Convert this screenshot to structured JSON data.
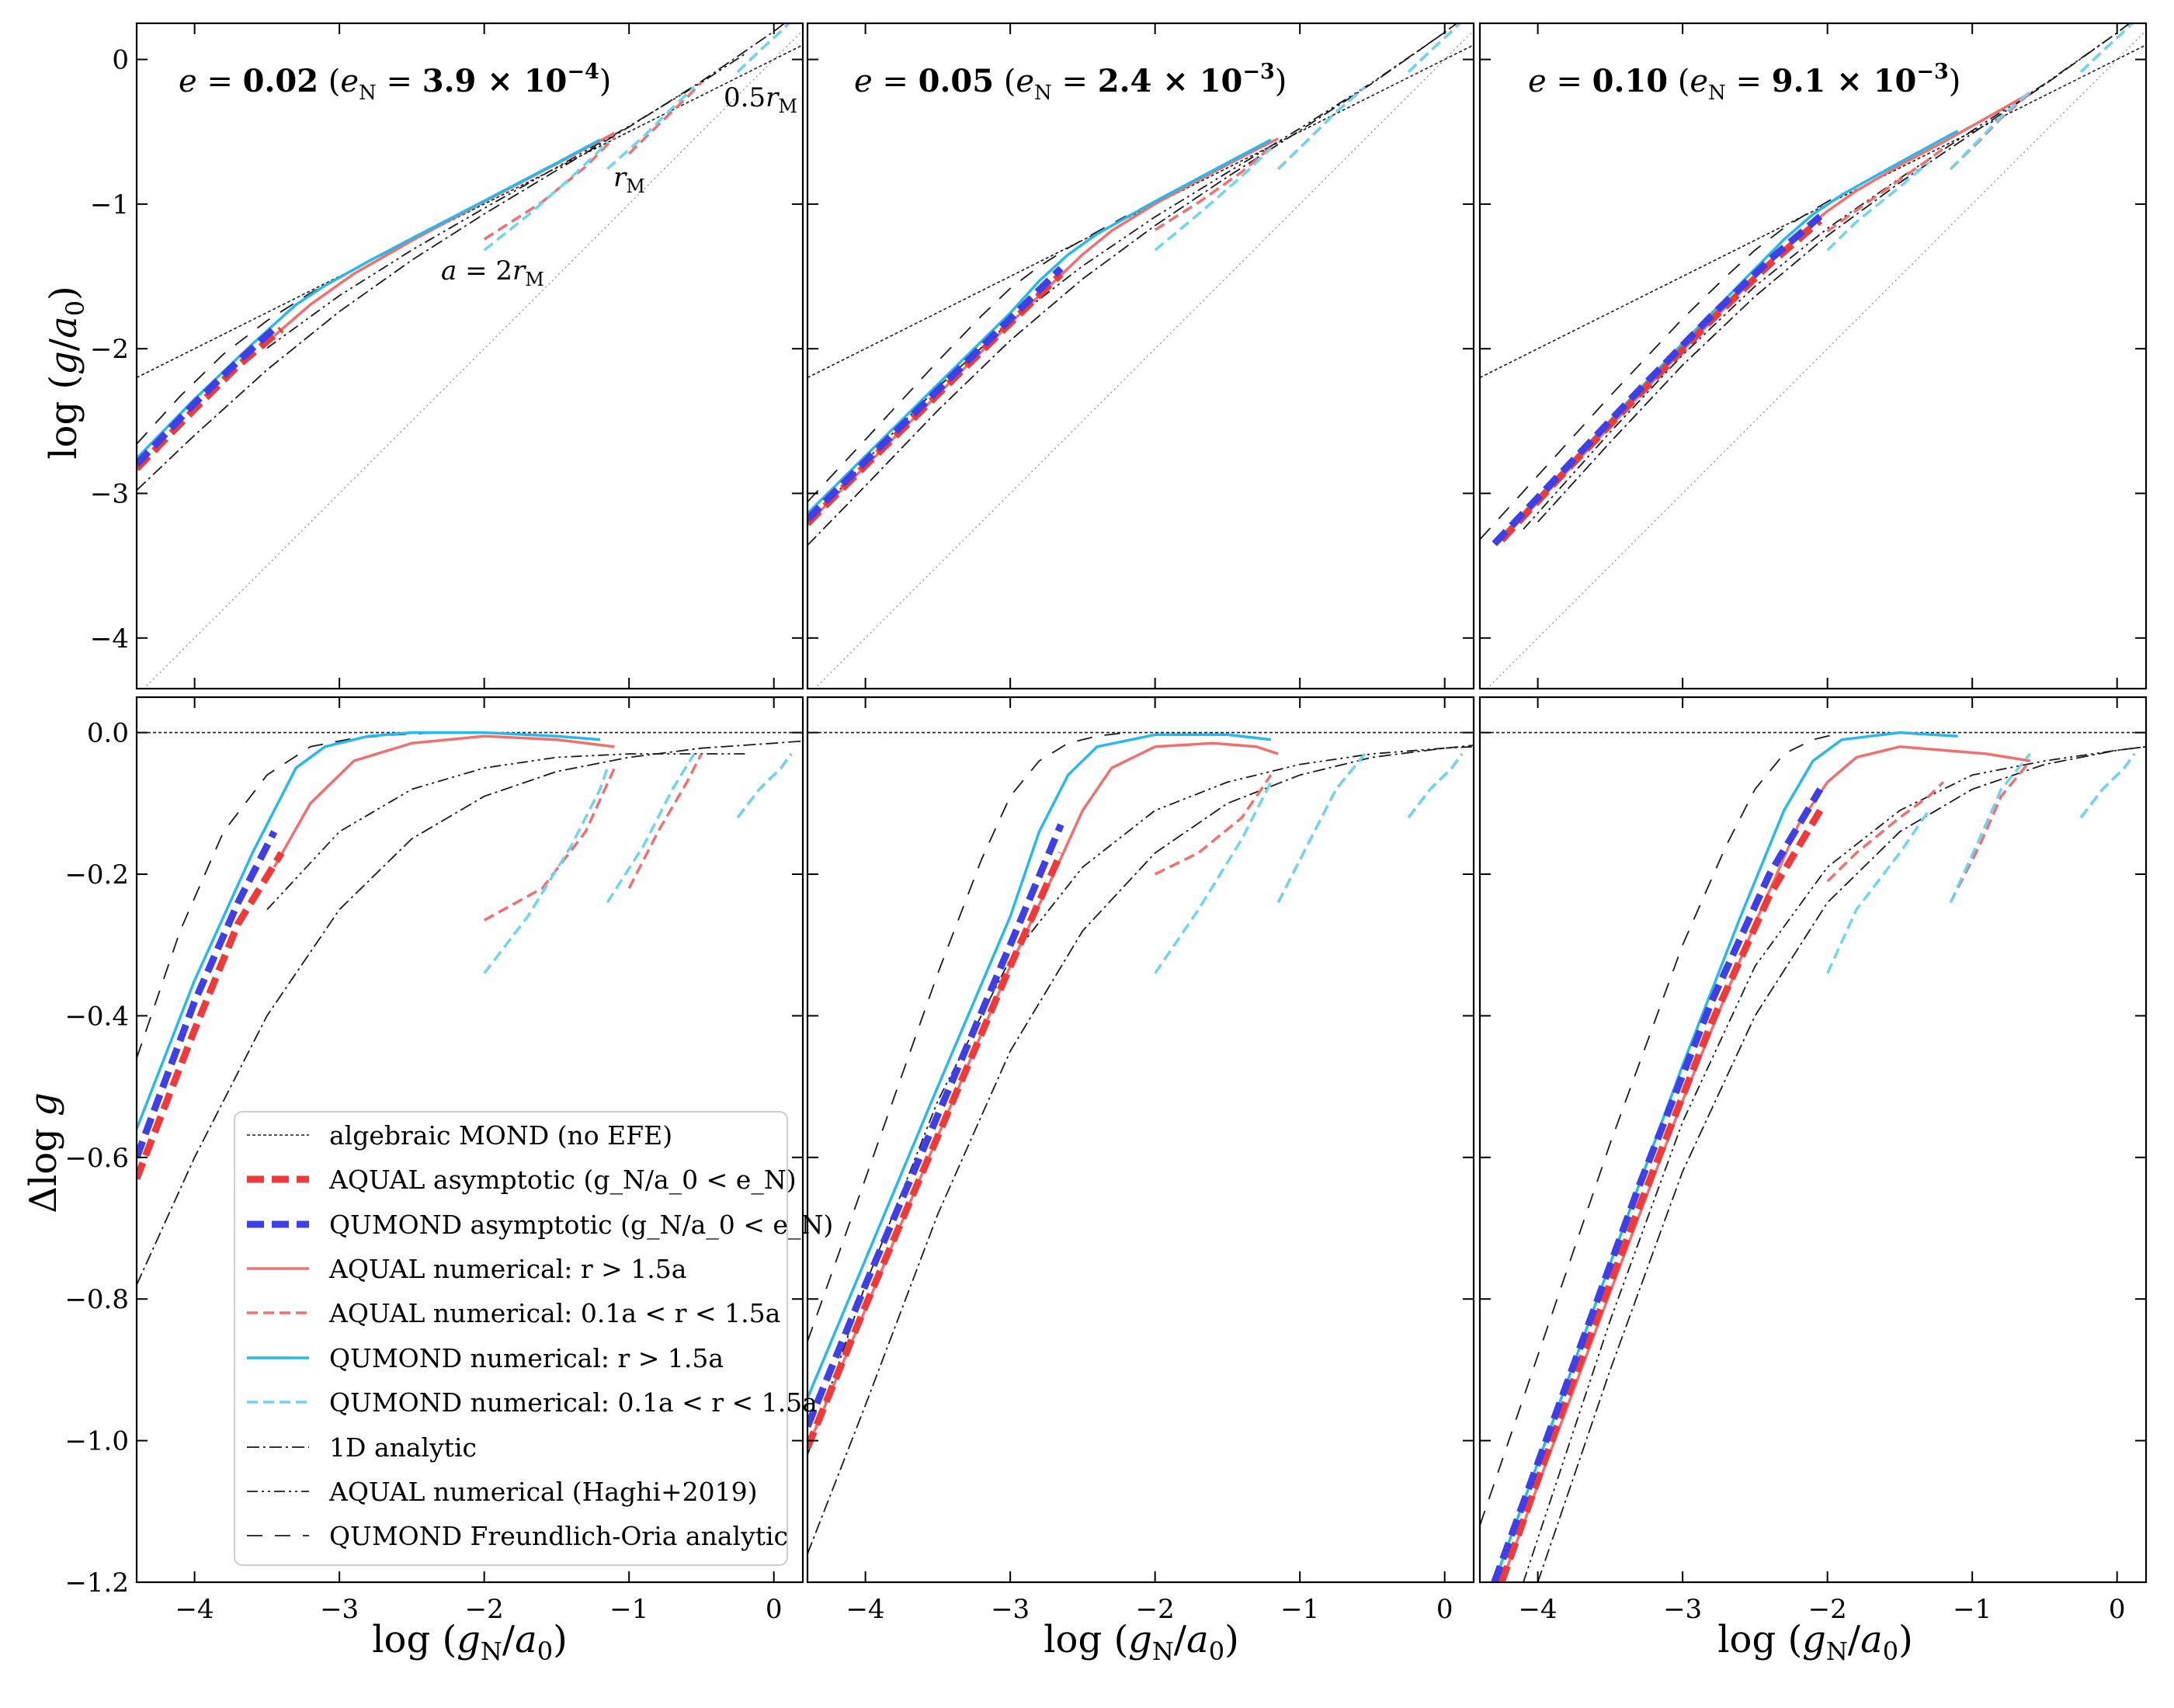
{
  "chart_data": {
    "type": "line",
    "layout": "2x3 panel grid",
    "x_label": "log (g_N/a_0)",
    "top_y_label": "log (g/a_0)",
    "bottom_y_label": "Δlog g",
    "xlim": [
      -4.4,
      0.2
    ],
    "top_ylim": [
      -4.35,
      0.25
    ],
    "bottom_ylim": [
      -1.2,
      0.05
    ],
    "x_ticks": [
      -4,
      -3,
      -2,
      -1,
      0
    ],
    "x_tick_labels": [
      "−4",
      "−3",
      "−2",
      "−1",
      "0"
    ],
    "top_y_ticks": [
      0,
      -1,
      -2,
      -3,
      -4
    ],
    "top_y_tick_labels": [
      "0",
      "−1",
      "−2",
      "−3",
      "−4"
    ],
    "bottom_y_ticks": [
      0,
      -0.2,
      -0.4,
      -0.6,
      -0.8,
      -1.0,
      -1.2
    ],
    "bottom_y_tick_labels": [
      "0.0",
      "−0.2",
      "−0.4",
      "−0.6",
      "−0.8",
      "−1.0",
      "−1.2"
    ],
    "annotations": [
      "0.5 r_M",
      "r_M",
      "a = 2 r_M"
    ],
    "legend": [
      {
        "label": "algebraic MOND (no EFE)",
        "style": "thin-dotted-black"
      },
      {
        "label": "AQUAL asymptotic (g_N/a_0 < e_N)",
        "style": "thick-dashed-red"
      },
      {
        "label": "QUMOND asymptotic (g_N/a_0 < e_N)",
        "style": "thick-dashed-blue"
      },
      {
        "label": "AQUAL numerical: r > 1.5a",
        "style": "solid-red"
      },
      {
        "label": "AQUAL numerical: 0.1a < r < 1.5a",
        "style": "dashed-red"
      },
      {
        "label": "QUMOND numerical: r > 1.5a",
        "style": "solid-cyan"
      },
      {
        "label": "QUMOND numerical: 0.1a < r < 1.5a",
        "style": "dashed-cyan"
      },
      {
        "label": "1D analytic",
        "style": "dashdot-black"
      },
      {
        "label": "AQUAL numerical (Haghi+2019)",
        "style": "dashdotdot-black"
      },
      {
        "label": "QUMOND Freundlich-Oria analytic",
        "style": "longdash-black"
      }
    ],
    "panels": [
      {
        "e": "0.02",
        "eN_mant": "3.9",
        "eN_exp": "−4",
        "curves": {
          "mond": {
            "x": [
              -4.4,
              -3.4,
              -2.4,
              -1.4,
              -0.5,
              0.2
            ],
            "y": [
              0.0,
              0.0,
              0.0,
              0.0,
              0.0,
              0.0
            ]
          },
          "aqAsym": {
            "x": [
              -4.4,
              -4.0,
              -3.7,
              -3.4
            ],
            "y": [
              -0.63,
              -0.42,
              -0.27,
              -0.17
            ]
          },
          "quAsym": {
            "x": [
              -4.4,
              -4.0,
              -3.7,
              -3.45
            ],
            "y": [
              -0.6,
              -0.38,
              -0.24,
              -0.14
            ]
          },
          "aqNum": {
            "x": [
              -3.45,
              -3.2,
              -2.9,
              -2.5,
              -2.0,
              -1.5,
              -1.1
            ],
            "y": [
              -0.19,
              -0.1,
              -0.04,
              -0.015,
              -0.005,
              -0.01,
              -0.02
            ]
          },
          "quNum": {
            "x": [
              -4.4,
              -4.0,
              -3.6,
              -3.3,
              -3.1,
              -2.8,
              -2.5,
              -2.0,
              -1.5,
              -1.2
            ],
            "y": [
              -0.56,
              -0.35,
              -0.17,
              -0.05,
              -0.02,
              -0.005,
              0.0,
              0.0,
              -0.005,
              -0.01
            ]
          },
          "aqDashes": [
            {
              "x": [
                -2.0,
                -1.6,
                -1.3,
                -1.1
              ],
              "y": [
                -0.265,
                -0.22,
                -0.14,
                -0.05
              ]
            },
            {
              "x": [
                -1.0,
                -0.8,
                -0.6,
                -0.5
              ],
              "y": [
                -0.22,
                -0.14,
                -0.07,
                -0.03
              ]
            },
            {
              "x": [
                -0.25,
                -0.1,
                0.05,
                0.12
              ],
              "y": [
                -0.12,
                -0.08,
                -0.05,
                -0.03
              ]
            }
          ],
          "quDashes": [
            {
              "x": [
                -2.0,
                -1.7,
                -1.4,
                -1.2,
                -1.15
              ],
              "y": [
                -0.34,
                -0.26,
                -0.16,
                -0.08,
                -0.05
              ]
            },
            {
              "x": [
                -1.15,
                -0.9,
                -0.7,
                -0.55
              ],
              "y": [
                -0.24,
                -0.16,
                -0.08,
                -0.03
              ]
            },
            {
              "x": [
                -0.25,
                -0.1,
                0.05,
                0.12
              ],
              "y": [
                -0.12,
                -0.08,
                -0.05,
                -0.03
              ]
            }
          ],
          "d1": {
            "x": [
              -4.4,
              -4.0,
              -3.5,
              -3.0,
              -2.5,
              -2.0,
              -1.5,
              -1.0,
              -0.5,
              0.0,
              0.2
            ],
            "y": [
              -0.78,
              -0.6,
              -0.4,
              -0.25,
              -0.15,
              -0.09,
              -0.055,
              -0.035,
              -0.022,
              -0.015,
              -0.012
            ]
          },
          "hg": {
            "x": [
              -3.5,
              -3.0,
              -2.5,
              -2.0,
              -1.5,
              -1.0,
              -0.5,
              -0.2
            ],
            "y": [
              -0.25,
              -0.14,
              -0.08,
              -0.05,
              -0.035,
              -0.03,
              -0.03,
              -0.03
            ]
          },
          "fo": {
            "x": [
              -4.4,
              -4.1,
              -3.8,
              -3.5,
              -3.2,
              -2.9,
              -2.6,
              -2.3
            ],
            "y": [
              -0.46,
              -0.28,
              -0.14,
              -0.06,
              -0.02,
              -0.008,
              -0.003,
              0.0
            ]
          }
        }
      },
      {
        "e": "0.05",
        "eN_mant": "2.4",
        "eN_exp": "−3",
        "curves": {
          "mond": {
            "x": [
              -4.4,
              -3.4,
              -2.4,
              -1.4,
              -0.5,
              0.2
            ],
            "y": [
              0.0,
              0.0,
              0.0,
              0.0,
              0.0,
              0.0
            ]
          },
          "aqAsym": {
            "x": [
              -4.4,
              -4.0,
              -3.5,
              -3.0,
              -2.65
            ],
            "y": [
              -1.01,
              -0.81,
              -0.57,
              -0.33,
              -0.17
            ]
          },
          "quAsym": {
            "x": [
              -4.4,
              -4.0,
              -3.5,
              -3.0,
              -2.65
            ],
            "y": [
              -0.98,
              -0.78,
              -0.54,
              -0.3,
              -0.13
            ]
          },
          "aqNum": {
            "x": [
              -4.4,
              -3.5,
              -3.0,
              -2.7,
              -2.5,
              -2.3,
              -2.0,
              -1.6,
              -1.3,
              -1.15
            ],
            "y": [
              -1.01,
              -0.57,
              -0.33,
              -0.2,
              -0.11,
              -0.05,
              -0.02,
              -0.015,
              -0.02,
              -0.03
            ]
          },
          "quNum": {
            "x": [
              -4.4,
              -3.5,
              -3.0,
              -2.8,
              -2.6,
              -2.4,
              -2.0,
              -1.5,
              -1.2
            ],
            "y": [
              -0.94,
              -0.5,
              -0.26,
              -0.14,
              -0.06,
              -0.02,
              -0.003,
              -0.003,
              -0.01
            ]
          },
          "aqDashes": [
            {
              "x": [
                -2.0,
                -1.7,
                -1.4,
                -1.2
              ],
              "y": [
                -0.2,
                -0.17,
                -0.12,
                -0.06
              ]
            },
            {
              "x": [
                -1.15,
                -0.95,
                -0.75,
                -0.55
              ],
              "y": [
                -0.24,
                -0.16,
                -0.08,
                -0.03
              ]
            },
            {
              "x": [
                -0.25,
                -0.1,
                0.05,
                0.12
              ],
              "y": [
                -0.12,
                -0.08,
                -0.05,
                -0.03
              ]
            }
          ],
          "quDashes": [
            {
              "x": [
                -2.0,
                -1.7,
                -1.4,
                -1.2
              ],
              "y": [
                -0.34,
                -0.25,
                -0.15,
                -0.07
              ]
            },
            {
              "x": [
                -1.15,
                -0.95,
                -0.75,
                -0.55
              ],
              "y": [
                -0.24,
                -0.16,
                -0.08,
                -0.03
              ]
            },
            {
              "x": [
                -0.25,
                -0.1,
                0.05,
                0.12
              ],
              "y": [
                -0.12,
                -0.08,
                -0.05,
                -0.03
              ]
            }
          ],
          "d1": {
            "x": [
              -4.4,
              -4.0,
              -3.5,
              -3.0,
              -2.5,
              -2.0,
              -1.5,
              -1.0,
              -0.5,
              0.0,
              0.2
            ],
            "y": [
              -1.16,
              -0.95,
              -0.68,
              -0.45,
              -0.28,
              -0.17,
              -0.1,
              -0.06,
              -0.035,
              -0.022,
              -0.018
            ]
          },
          "hg": {
            "x": [
              -4.4,
              -4.0,
              -3.5,
              -3.0,
              -2.5,
              -2.0,
              -1.5,
              -1.0,
              -0.5,
              0.0,
              0.2
            ],
            "y": [
              -1.02,
              -0.78,
              -0.52,
              -0.32,
              -0.19,
              -0.11,
              -0.07,
              -0.045,
              -0.03,
              -0.022,
              -0.02
            ]
          },
          "fo": {
            "x": [
              -4.4,
              -4.0,
              -3.5,
              -3.2,
              -3.0,
              -2.8,
              -2.6,
              -2.4,
              -2.2
            ],
            "y": [
              -0.86,
              -0.63,
              -0.34,
              -0.18,
              -0.09,
              -0.04,
              -0.015,
              -0.005,
              0.0
            ]
          }
        }
      },
      {
        "e": "0.10",
        "eN_mant": "9.1",
        "eN_exp": "−3",
        "curves": {
          "mond": {
            "x": [
              -4.4,
              -3.4,
              -2.4,
              -1.4,
              -0.5,
              0.2
            ],
            "y": [
              0.0,
              0.0,
              0.0,
              0.0,
              0.0,
              0.0
            ]
          },
          "aqAsym": {
            "x": [
              -4.25,
              -3.8,
              -3.3,
              -2.8,
              -2.4,
              -2.05
            ],
            "y": [
              -1.2,
              -0.94,
              -0.67,
              -0.41,
              -0.23,
              -0.11
            ]
          },
          "quAsym": {
            "x": [
              -4.3,
              -3.8,
              -3.3,
              -2.8,
              -2.4,
              -2.05
            ],
            "y": [
              -1.2,
              -0.92,
              -0.64,
              -0.38,
              -0.2,
              -0.08
            ]
          },
          "aqNum": {
            "x": [
              -4.25,
              -3.5,
              -3.0,
              -2.5,
              -2.2,
              -2.0,
              -1.8,
              -1.5,
              -1.2,
              -0.9,
              -0.6
            ],
            "y": [
              -1.2,
              -0.79,
              -0.52,
              -0.27,
              -0.13,
              -0.07,
              -0.035,
              -0.02,
              -0.025,
              -0.03,
              -0.04
            ]
          },
          "quNum": {
            "x": [
              -4.3,
              -3.5,
              -3.0,
              -2.6,
              -2.3,
              -2.1,
              -1.9,
              -1.5,
              -1.1
            ],
            "y": [
              -1.2,
              -0.75,
              -0.47,
              -0.26,
              -0.11,
              -0.04,
              -0.01,
              0.0,
              -0.005
            ]
          },
          "aqDashes": [
            {
              "x": [
                -2.0,
                -1.8,
                -1.5,
                -1.3,
                -1.2
              ],
              "y": [
                -0.21,
                -0.17,
                -0.12,
                -0.09,
                -0.07
              ]
            },
            {
              "x": [
                -1.15,
                -0.95,
                -0.8,
                -0.6
              ],
              "y": [
                -0.24,
                -0.16,
                -0.09,
                -0.04
              ]
            },
            {
              "x": [
                -0.25,
                -0.1,
                0.05,
                0.12
              ],
              "y": [
                -0.12,
                -0.08,
                -0.05,
                -0.03
              ]
            }
          ],
          "quDashes": [
            {
              "x": [
                -2.0,
                -1.8,
                -1.5,
                -1.3
              ],
              "y": [
                -0.34,
                -0.25,
                -0.17,
                -0.11
              ]
            },
            {
              "x": [
                -1.15,
                -0.95,
                -0.8,
                -0.6
              ],
              "y": [
                -0.24,
                -0.15,
                -0.08,
                -0.03
              ]
            },
            {
              "x": [
                -0.25,
                -0.1,
                0.05,
                0.12
              ],
              "y": [
                -0.12,
                -0.08,
                -0.05,
                -0.03
              ]
            }
          ],
          "d1": {
            "x": [
              -4.0,
              -3.5,
              -3.0,
              -2.5,
              -2.0,
              -1.5,
              -1.0,
              -0.5,
              0.0,
              0.2
            ],
            "y": [
              -1.2,
              -0.9,
              -0.62,
              -0.4,
              -0.24,
              -0.14,
              -0.08,
              -0.045,
              -0.025,
              -0.02
            ]
          },
          "hg": {
            "x": [
              -4.1,
              -3.5,
              -3.0,
              -2.5,
              -2.0,
              -1.5,
              -1.0,
              -0.5,
              0.0,
              0.2
            ],
            "y": [
              -1.2,
              -0.83,
              -0.55,
              -0.33,
              -0.19,
              -0.11,
              -0.06,
              -0.04,
              -0.025,
              -0.02
            ]
          },
          "fo": {
            "x": [
              -4.4,
              -4.0,
              -3.5,
              -3.0,
              -2.7,
              -2.5,
              -2.3,
              -2.1,
              -1.9
            ],
            "y": [
              -1.12,
              -0.88,
              -0.58,
              -0.3,
              -0.16,
              -0.08,
              -0.03,
              -0.01,
              0.0
            ]
          }
        }
      }
    ]
  },
  "colors": {
    "aqual_red": "#f03a3a",
    "aqual_light_red": "#f07070",
    "qumond_blue": "#3f3fe6",
    "qumond_cyan": "#28b8ea",
    "qumond_light_cyan": "#6fd3f2",
    "black": "#1a1a1a",
    "gray": "#9a9a9a"
  }
}
